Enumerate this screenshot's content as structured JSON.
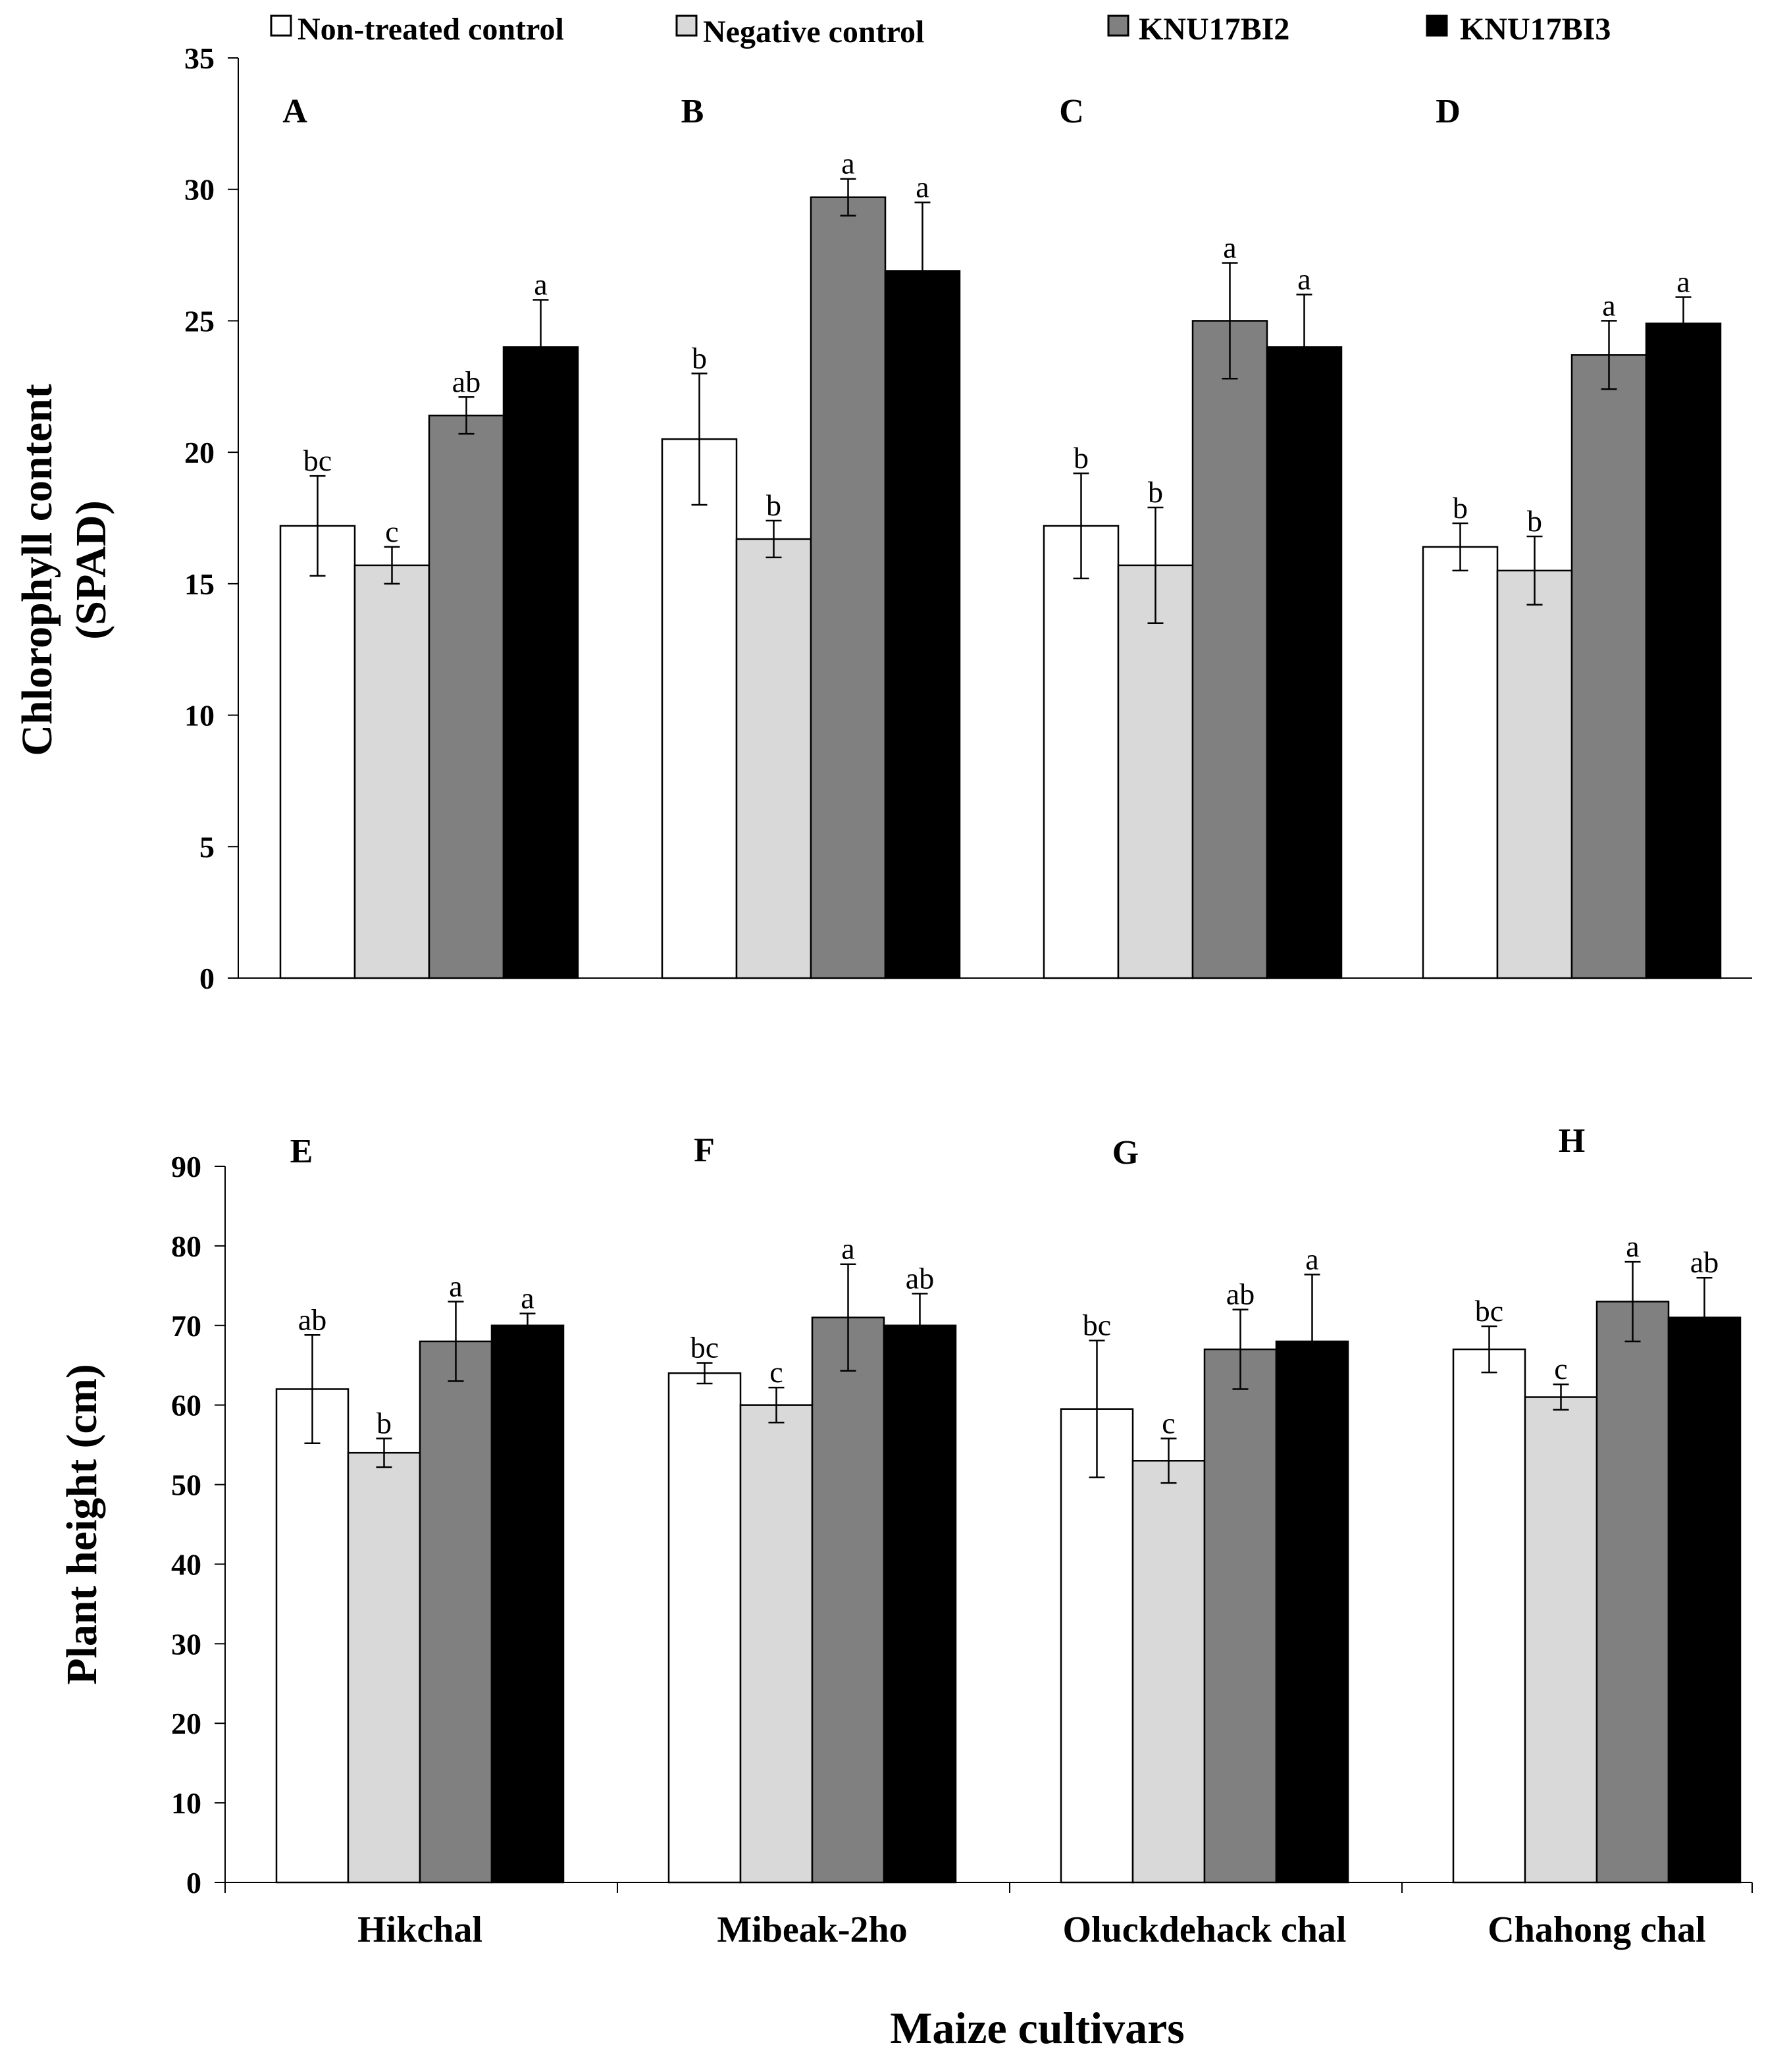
{
  "legend": {
    "items": [
      {
        "label": "Non-treated control",
        "color": "#ffffff"
      },
      {
        "label": "Negative control",
        "color": "#d9d9d9"
      },
      {
        "label": "KNU17BI2",
        "color": "#808080"
      },
      {
        "label": "KNU17BI3",
        "color": "#000000"
      }
    ]
  },
  "chart_data": [
    {
      "type": "bar",
      "ylabel_line1": "Chlorophyll content",
      "ylabel_line2": "(SPAD)",
      "ylim": [
        0,
        35
      ],
      "yticks": [
        0,
        5,
        10,
        15,
        20,
        25,
        30,
        35
      ],
      "categories": [
        "Hikchal",
        "Mibeak-2ho",
        "Oluckdehack chal",
        "Chahong chal"
      ],
      "panel_labels": [
        "A",
        "B",
        "C",
        "D"
      ],
      "series": [
        {
          "name": "Non-treated control",
          "values": [
            17.2,
            20.5,
            17.2,
            16.4
          ],
          "errors": [
            1.9,
            2.5,
            2.0,
            0.9
          ],
          "sig": [
            "bc",
            "b",
            "b",
            "b"
          ]
        },
        {
          "name": "Negative control",
          "values": [
            15.7,
            16.7,
            15.7,
            15.5
          ],
          "errors": [
            0.7,
            0.7,
            2.2,
            1.3
          ],
          "sig": [
            "c",
            "b",
            "b",
            "b"
          ]
        },
        {
          "name": "KNU17BI2",
          "values": [
            21.4,
            29.7,
            25.0,
            23.7
          ],
          "errors": [
            0.7,
            0.7,
            2.2,
            1.3
          ],
          "sig": [
            "ab",
            "a",
            "a",
            "a"
          ]
        },
        {
          "name": "KNU17BI3",
          "values": [
            24.0,
            26.9,
            24.0,
            24.9
          ],
          "errors": [
            1.8,
            2.6,
            2.0,
            1.0
          ],
          "sig": [
            "a",
            "a",
            "a",
            "a"
          ]
        }
      ]
    },
    {
      "type": "bar",
      "ylabel": "Plant  height (cm)",
      "xlabel": "Maize cultivars",
      "ylim": [
        0,
        90
      ],
      "yticks": [
        0,
        10,
        20,
        30,
        40,
        50,
        60,
        70,
        80,
        90
      ],
      "categories": [
        "Hikchal",
        "Mibeak-2ho",
        "Oluckdehack chal",
        "Chahong chal"
      ],
      "panel_labels": [
        "E",
        "F",
        "G",
        "H"
      ],
      "series": [
        {
          "name": "Non-treated control",
          "values": [
            62.0,
            64.0,
            59.5,
            67.0
          ],
          "errors": [
            6.8,
            1.3,
            8.6,
            2.9
          ],
          "sig": [
            "ab",
            "bc",
            "bc",
            "bc"
          ]
        },
        {
          "name": "Negative control",
          "values": [
            54.0,
            60.0,
            53.0,
            61.0
          ],
          "errors": [
            1.8,
            2.2,
            2.8,
            1.6
          ],
          "sig": [
            "b",
            "c",
            "c",
            "c"
          ]
        },
        {
          "name": "KNU17BI2",
          "values": [
            68.0,
            71.0,
            67.0,
            73.0
          ],
          "errors": [
            5.0,
            6.7,
            5.0,
            5.0
          ],
          "sig": [
            "a",
            "a",
            "ab",
            "a"
          ]
        },
        {
          "name": "KNU17BI3",
          "values": [
            70.0,
            70.0,
            68.0,
            71.0
          ],
          "errors": [
            1.5,
            4.0,
            8.4,
            5.0
          ],
          "sig": [
            "a",
            "ab",
            "a",
            "ab"
          ]
        }
      ]
    }
  ]
}
